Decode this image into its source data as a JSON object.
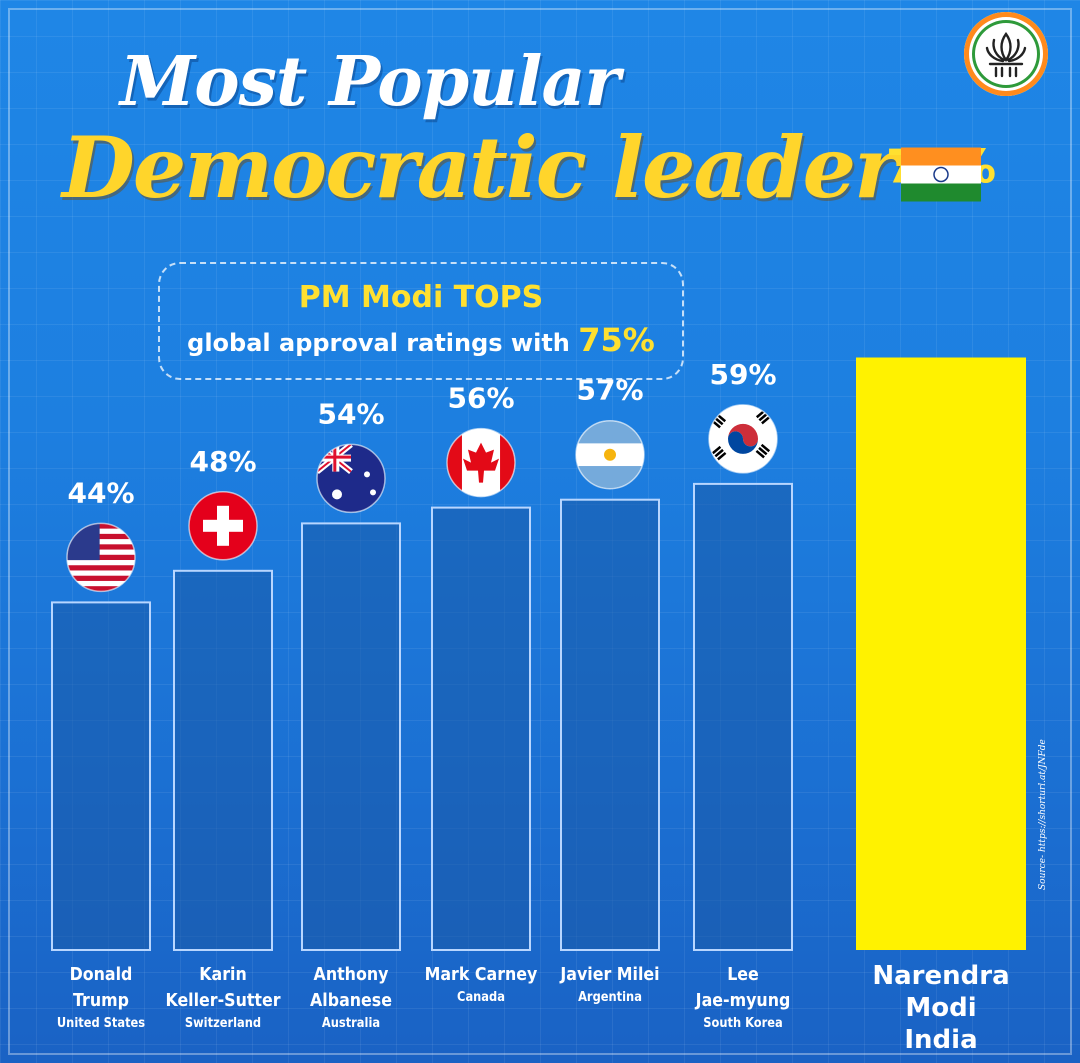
{
  "header": {
    "title_line1": "Most Popular",
    "title_line2": "Democratic leader"
  },
  "logo": {
    "icon": "lotus-icon",
    "ring_colors": [
      "#ff8a1c",
      "#2e9a3a"
    ]
  },
  "tagline": {
    "line1": "PM Modi TOPS",
    "line2_prefix": "global approval ratings with",
    "line2_value": "75%"
  },
  "colors": {
    "background": "#1d7fe0",
    "bar": "#1a5aa8",
    "bar_outline": "#b8d6ff",
    "highlight_bar": "#fff200",
    "label": "#ffffff",
    "highlight_label": "#ffe030"
  },
  "chart_data": {
    "type": "bar",
    "title": "Most Popular Democratic leader",
    "categories": [
      "Donald Trump",
      "Karin Keller-Sutter",
      "Anthony Albanese",
      "Mark Carney",
      "Javier Milei",
      "Lee Jae-myung",
      "Narendra Modi"
    ],
    "countries": [
      "United States",
      "Switzerland",
      "Australia",
      "Canada",
      "Argentina",
      "South Korea",
      "India"
    ],
    "flags": [
      "flag-usa-icon",
      "flag-switzerland-icon",
      "flag-australia-icon",
      "flag-canada-icon",
      "flag-argentina-icon",
      "flag-south-korea-icon",
      "flag-india-icon"
    ],
    "values": [
      44,
      48,
      54,
      56,
      57,
      59,
      75
    ],
    "value_labels": [
      "44%",
      "48%",
      "54%",
      "56%",
      "57%",
      "59%",
      "75%"
    ],
    "highlight_index": 6,
    "ylim": [
      0,
      75
    ],
    "grid": true,
    "legend": "none"
  },
  "names": [
    {
      "line1": "Donald",
      "line2": "Trump",
      "country": "United States"
    },
    {
      "line1": "Karin",
      "line2": "Keller-Sutter",
      "country": "Switzerland"
    },
    {
      "line1": "Anthony",
      "line2": "Albanese",
      "country": "Australia"
    },
    {
      "line1": "Mark Carney",
      "line2": "",
      "country": "Canada"
    },
    {
      "line1": "Javier Milei",
      "line2": "",
      "country": "Argentina"
    },
    {
      "line1": "Lee",
      "line2": "Jae-myung",
      "country": "South Korea"
    },
    {
      "line1": "Narendra",
      "line2": "Modi",
      "country": "India"
    }
  ],
  "source": "Source- https://shorturl.at/JNFde"
}
